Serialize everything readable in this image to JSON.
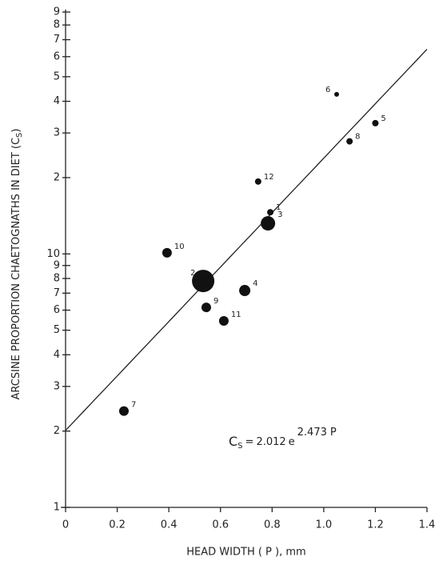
{
  "chart_data": {
    "type": "scatter",
    "x_label": "HEAD WIDTH ( P ), mm",
    "y_label": "ARCSINE PROPORTION CHAETOGNATHS IN DIET (C",
    "y_label_sub": "S",
    "y_label_end": ")",
    "x": [
      0.793,
      0.533,
      0.784,
      0.694,
      1.2,
      1.05,
      0.226,
      1.1,
      0.545,
      0.393,
      0.613,
      0.746
    ],
    "values": [
      14.6,
      7.82,
      13.2,
      7.17,
      32.8,
      42.6,
      2.4,
      27.8,
      6.15,
      10.1,
      5.44,
      19.3
    ],
    "sizes": [
      4,
      14,
      9,
      7,
      4,
      3,
      6,
      4,
      6,
      6,
      6,
      4
    ],
    "labels": [
      "1",
      "2",
      "3",
      "4",
      "5",
      "6",
      "7",
      "8",
      "9",
      "10",
      "11",
      "12"
    ],
    "color": "#111111",
    "log_y": true,
    "xlim": [
      0,
      1.4
    ],
    "ylim": [
      1,
      92
    ],
    "xticks": [
      0,
      0.2,
      0.4,
      0.6,
      0.8,
      {
        "value": 1,
        "label": "1.0"
      },
      1.2,
      1.4
    ],
    "yticks": [
      1,
      2,
      3,
      4,
      5,
      6,
      7,
      8,
      9,
      10,
      {
        "value": 20,
        "label": "2"
      },
      {
        "value": 30,
        "label": "3"
      },
      {
        "value": 40,
        "label": "4"
      },
      {
        "value": 50,
        "label": "5"
      },
      {
        "value": 60,
        "label": "6"
      },
      {
        "value": 70,
        "label": "7"
      },
      {
        "value": 80,
        "label": "8"
      },
      {
        "value": 90,
        "label": "9"
      }
    ],
    "fit": {
      "a": 2.012,
      "b": 2.473,
      "symbol": "C",
      "subscript": "S",
      "equals": "=",
      "base": "e",
      "variable": "P"
    }
  }
}
